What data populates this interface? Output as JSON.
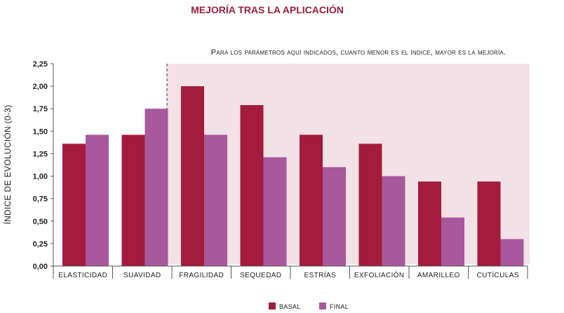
{
  "colors": {
    "title": "#9b1c3c",
    "basal": "#a31b3d",
    "final": "#a8589c",
    "highlight_bg": "#f2e1e6",
    "text": "#222222",
    "axis": "#555555"
  },
  "chart_data": {
    "type": "bar",
    "title": "MEJORÍA TRAS LA APLICACIÓN",
    "ylabel": "ÍNDICE DE EVOLUCIÓN (0-3)",
    "xlabel": "",
    "annotation": "Para los parámetros aquí indicados, cuanto menor es el índice, mayor es la mejoría.",
    "ylim": [
      0,
      2.25
    ],
    "yticks": [
      "0,00",
      "0,25",
      "0,50",
      "0,75",
      "1,00",
      "1,25",
      "1,50",
      "1,75",
      "2,00",
      "2,25"
    ],
    "categories": [
      "ELASTICIDAD",
      "SUAVIDAD",
      "FRAGILIDAD",
      "SEQUEDAD",
      "ESTRÍAS",
      "EXFOLIACIÓN",
      "AMARILLEO",
      "CUTÍCULAS"
    ],
    "series": [
      {
        "name": "BASAL",
        "values": [
          1.36,
          1.46,
          2.0,
          1.79,
          1.46,
          1.36,
          0.94,
          0.94
        ]
      },
      {
        "name": "FINAL",
        "values": [
          1.46,
          1.75,
          1.46,
          1.21,
          1.1,
          1.0,
          0.54,
          0.3
        ]
      }
    ],
    "highlight_from_category": 2,
    "legend_position": "bottom-center",
    "grid": false
  }
}
